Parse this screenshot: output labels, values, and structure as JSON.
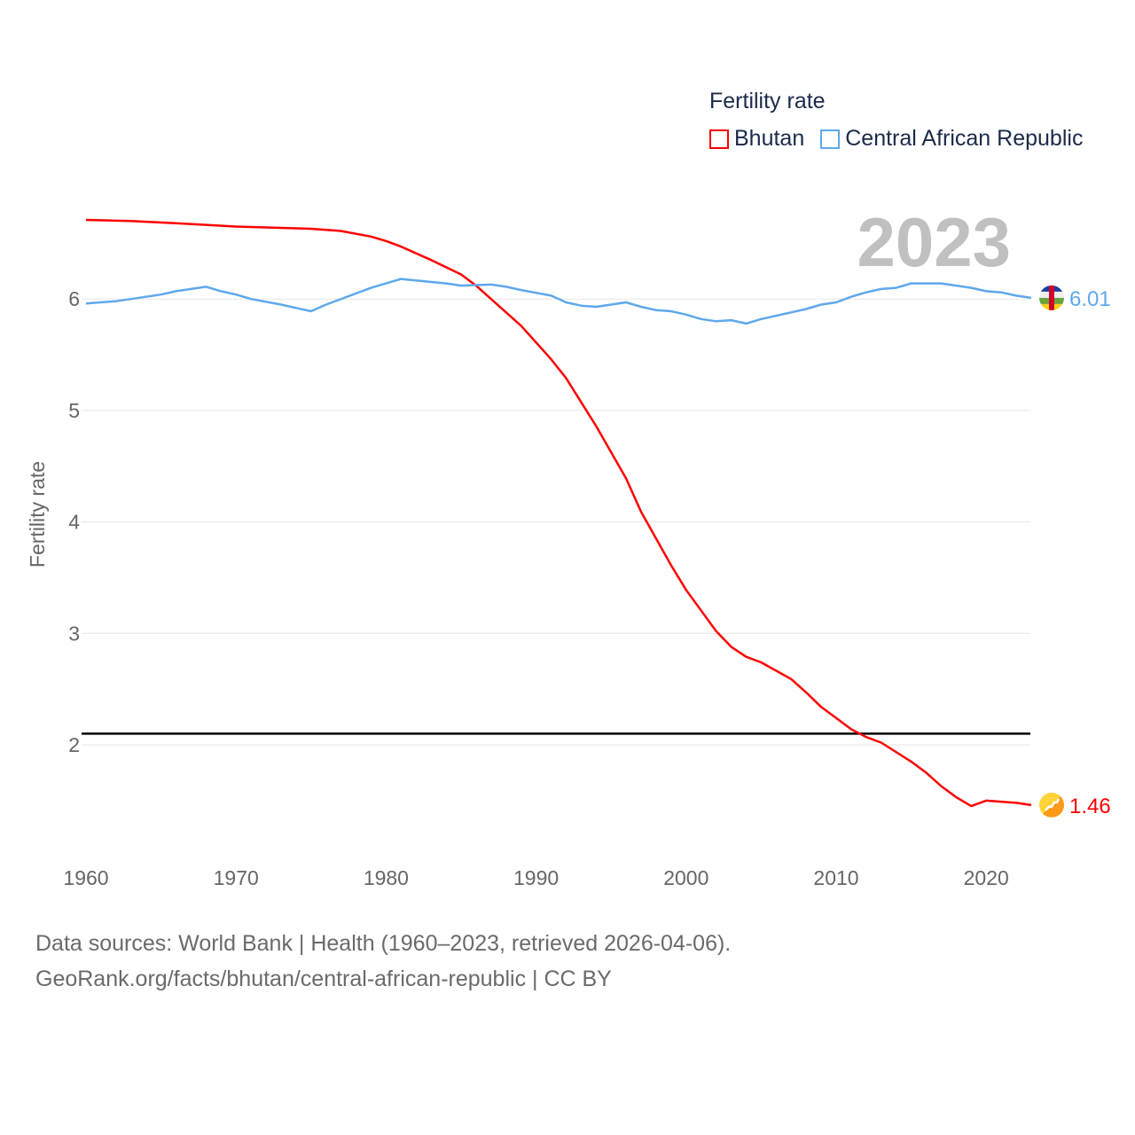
{
  "chart_data": {
    "type": "line",
    "title": "Fertility rate",
    "ylabel": "Fertility rate",
    "xlabel": "",
    "xlim": [
      1960,
      2023
    ],
    "ylim": [
      1.0,
      7.0
    ],
    "x_ticks": [
      1960,
      1970,
      1980,
      1990,
      2000,
      2010,
      2020
    ],
    "y_ticks": [
      2,
      3,
      4,
      5,
      6
    ],
    "grid": true,
    "legend_position": "top-right",
    "current_year_label": "2023",
    "reference_line": {
      "value": 2.1,
      "color": "#000000"
    },
    "series": [
      {
        "name": "Bhutan",
        "color": "#ff0000",
        "end_label": "1.46",
        "flag_icon": "bhutan-flag-icon",
        "points": [
          [
            1960,
            6.71
          ],
          [
            1963,
            6.7
          ],
          [
            1966,
            6.68
          ],
          [
            1970,
            6.65
          ],
          [
            1975,
            6.63
          ],
          [
            1977,
            6.61
          ],
          [
            1979,
            6.56
          ],
          [
            1980,
            6.52
          ],
          [
            1981,
            6.47
          ],
          [
            1983,
            6.35
          ],
          [
            1985,
            6.22
          ],
          [
            1986,
            6.12
          ],
          [
            1987,
            6.0
          ],
          [
            1989,
            5.76
          ],
          [
            1991,
            5.46
          ],
          [
            1992,
            5.29
          ],
          [
            1994,
            4.86
          ],
          [
            1996,
            4.39
          ],
          [
            1997,
            4.09
          ],
          [
            1999,
            3.61
          ],
          [
            2000,
            3.39
          ],
          [
            2002,
            3.02
          ],
          [
            2003,
            2.88
          ],
          [
            2004,
            2.79
          ],
          [
            2005,
            2.74
          ],
          [
            2007,
            2.59
          ],
          [
            2008,
            2.47
          ],
          [
            2009,
            2.34
          ],
          [
            2010,
            2.24
          ],
          [
            2011,
            2.14
          ],
          [
            2012,
            2.07
          ],
          [
            2013,
            2.02
          ],
          [
            2015,
            1.85
          ],
          [
            2016,
            1.75
          ],
          [
            2017,
            1.63
          ],
          [
            2018,
            1.53
          ],
          [
            2019,
            1.45
          ],
          [
            2020,
            1.5
          ],
          [
            2022,
            1.48
          ],
          [
            2023,
            1.46
          ]
        ]
      },
      {
        "name": "Central African Republic",
        "color": "#5ea8ec",
        "end_label": "6.01",
        "flag_icon": "central-african-republic-flag-icon",
        "points": [
          [
            1960,
            5.96
          ],
          [
            1962,
            5.98
          ],
          [
            1965,
            6.04
          ],
          [
            1966,
            6.07
          ],
          [
            1968,
            6.11
          ],
          [
            1969,
            6.07
          ],
          [
            1970,
            6.04
          ],
          [
            1971,
            6.0
          ],
          [
            1973,
            5.95
          ],
          [
            1974,
            5.92
          ],
          [
            1975,
            5.89
          ],
          [
            1976,
            5.95
          ],
          [
            1979,
            6.1
          ],
          [
            1981,
            6.18
          ],
          [
            1984,
            6.14
          ],
          [
            1985,
            6.12
          ],
          [
            1987,
            6.13
          ],
          [
            1988,
            6.11
          ],
          [
            1989,
            6.08
          ],
          [
            1991,
            6.03
          ],
          [
            1992,
            5.97
          ],
          [
            1993,
            5.94
          ],
          [
            1994,
            5.93
          ],
          [
            1996,
            5.97
          ],
          [
            1997,
            5.93
          ],
          [
            1998,
            5.9
          ],
          [
            1999,
            5.89
          ],
          [
            2000,
            5.86
          ],
          [
            2001,
            5.82
          ],
          [
            2002,
            5.8
          ],
          [
            2003,
            5.81
          ],
          [
            2004,
            5.78
          ],
          [
            2005,
            5.82
          ],
          [
            2007,
            5.88
          ],
          [
            2008,
            5.91
          ],
          [
            2009,
            5.95
          ],
          [
            2010,
            5.97
          ],
          [
            2011,
            6.02
          ],
          [
            2012,
            6.06
          ],
          [
            2013,
            6.09
          ],
          [
            2014,
            6.1
          ],
          [
            2015,
            6.14
          ],
          [
            2017,
            6.14
          ],
          [
            2019,
            6.1
          ],
          [
            2020,
            6.07
          ],
          [
            2021,
            6.06
          ],
          [
            2022,
            6.03
          ],
          [
            2023,
            6.01
          ]
        ]
      }
    ]
  },
  "footer": {
    "line1": "Data sources: World Bank | Health (1960–2023, retrieved 2026-04-06).",
    "line2": "GeoRank.org/facts/bhutan/central-african-republic | CC BY"
  }
}
